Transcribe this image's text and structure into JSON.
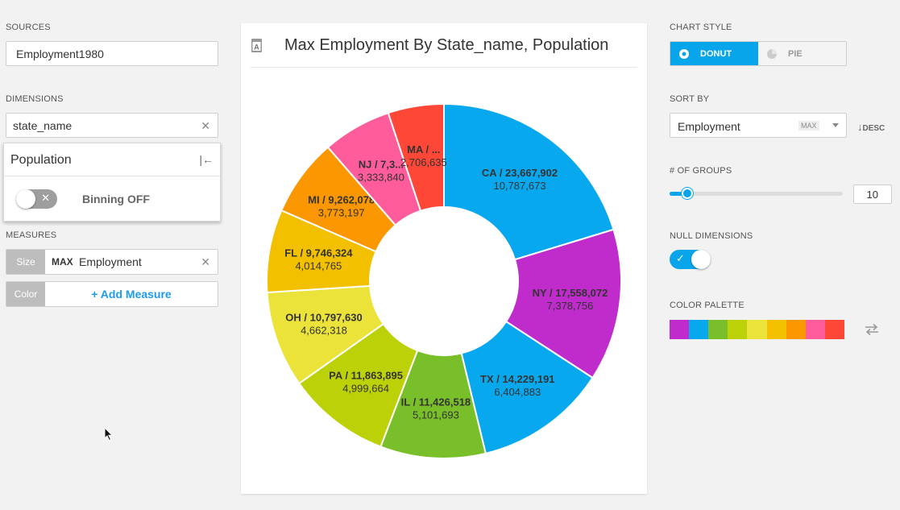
{
  "left_panel": {
    "sources_label": "SOURCES",
    "source_value": "Employment1980",
    "dimensions_label": "DIMENSIONS",
    "dimension_value": "state_name",
    "popover": {
      "title": "Population",
      "binning_label": "Binning OFF",
      "collapse_icon": "collapse-left-icon"
    },
    "measures_label": "MEASURES",
    "measures": [
      {
        "tag": "Size",
        "agg": "MAX",
        "field": "Employment"
      },
      {
        "tag": "Color",
        "add_label": "+ Add Measure"
      }
    ]
  },
  "chart": {
    "title": "Max Employment By State_name, Population",
    "title_icon": "text-format-icon"
  },
  "chart_data": {
    "type": "pie",
    "subtype": "donut",
    "title": "Max Employment By State_name, Population",
    "slices": [
      {
        "label": "CA / 23,667,902",
        "sub": "10,787,673",
        "value": 10787673,
        "color": "#08a8ef"
      },
      {
        "label": "NY / 17,558,072",
        "sub": "7,378,756",
        "value": 7378756,
        "color": "#c02ccc"
      },
      {
        "label": "TX / 14,229,191",
        "sub": "6,404,883",
        "value": 6404883,
        "color": "#08a8ef"
      },
      {
        "label": "IL / 11,426,518",
        "sub": "5,101,693",
        "value": 5101693,
        "color": "#79bf2a"
      },
      {
        "label": "PA / 11,863,895",
        "sub": "4,999,664",
        "value": 4999664,
        "color": "#bcd107"
      },
      {
        "label": "OH / 10,797,630",
        "sub": "4,662,318",
        "value": 4662318,
        "color": "#ebe33a"
      },
      {
        "label": "FL / 9,746,324",
        "sub": "4,014,765",
        "value": 4014765,
        "color": "#f3c000"
      },
      {
        "label": "MI / 9,262,078",
        "sub": "3,773,197",
        "value": 3773197,
        "color": "#fb9700"
      },
      {
        "label": "NJ / 7,3...",
        "sub": "3,333,840",
        "value": 3333840,
        "color": "#ff5c9c"
      },
      {
        "label": "MA / ...",
        "sub": "2,706,635",
        "value": 2706635,
        "color": "#ff4737"
      }
    ]
  },
  "right_panel": {
    "chart_style_label": "CHART STYLE",
    "styles": [
      {
        "label": "DONUT",
        "icon": "donut-icon",
        "active": true
      },
      {
        "label": "PIE",
        "icon": "pie-icon",
        "active": false
      }
    ],
    "sort_by_label": "SORT BY",
    "sort_field": "Employment",
    "sort_badge": "MAX",
    "sort_dir": "DESC",
    "groups_label": "# OF GROUPS",
    "groups_value": "10",
    "groups_fraction": 0.1,
    "null_dims_label": "NULL DIMENSIONS",
    "null_dims_on": true,
    "palette_label": "COLOR PALETTE",
    "palette": [
      "#c02ccc",
      "#08a8ef",
      "#79bf2a",
      "#bcd107",
      "#ebe33a",
      "#f3c000",
      "#fb9700",
      "#ff5c9c",
      "#ff4737"
    ]
  }
}
